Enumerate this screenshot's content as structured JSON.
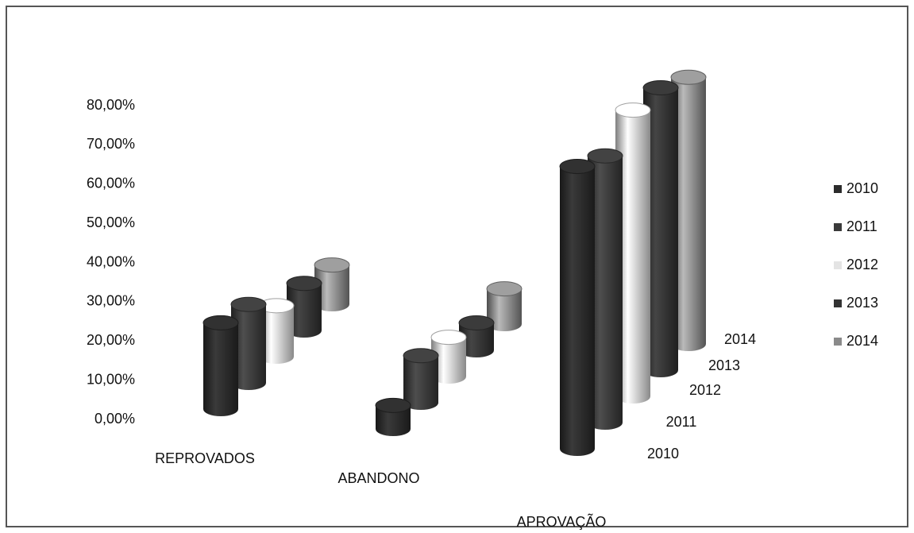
{
  "chart_data": {
    "type": "bar3d",
    "categories": [
      "REPROVADOS",
      "ABANDONO",
      "APROVAÇÃO"
    ],
    "series": [
      {
        "name": "2010",
        "color": "#2b2b2b",
        "values": [
          22,
          6,
          72
        ]
      },
      {
        "name": "2011",
        "color": "#3a3a3a",
        "values": [
          20,
          12,
          68
        ]
      },
      {
        "name": "2012",
        "color": "#e4e4e4",
        "values": [
          13,
          10,
          73
        ]
      },
      {
        "name": "2013",
        "color": "#333333",
        "values": [
          12,
          7,
          72
        ]
      },
      {
        "name": "2014",
        "color": "#8a8a8a",
        "values": [
          10,
          9,
          68
        ]
      }
    ],
    "ylim": [
      0,
      80
    ],
    "yticks": [
      {
        "value": 0,
        "label": "0,00%"
      },
      {
        "value": 10,
        "label": "10,00%"
      },
      {
        "value": 20,
        "label": "20,00%"
      },
      {
        "value": 30,
        "label": "30,00%"
      },
      {
        "value": 40,
        "label": "40,00%"
      },
      {
        "value": 50,
        "label": "50,00%"
      },
      {
        "value": 60,
        "label": "60,00%"
      },
      {
        "value": 70,
        "label": "70,00%"
      },
      {
        "value": 80,
        "label": "80,00%"
      }
    ],
    "legend": "right"
  }
}
